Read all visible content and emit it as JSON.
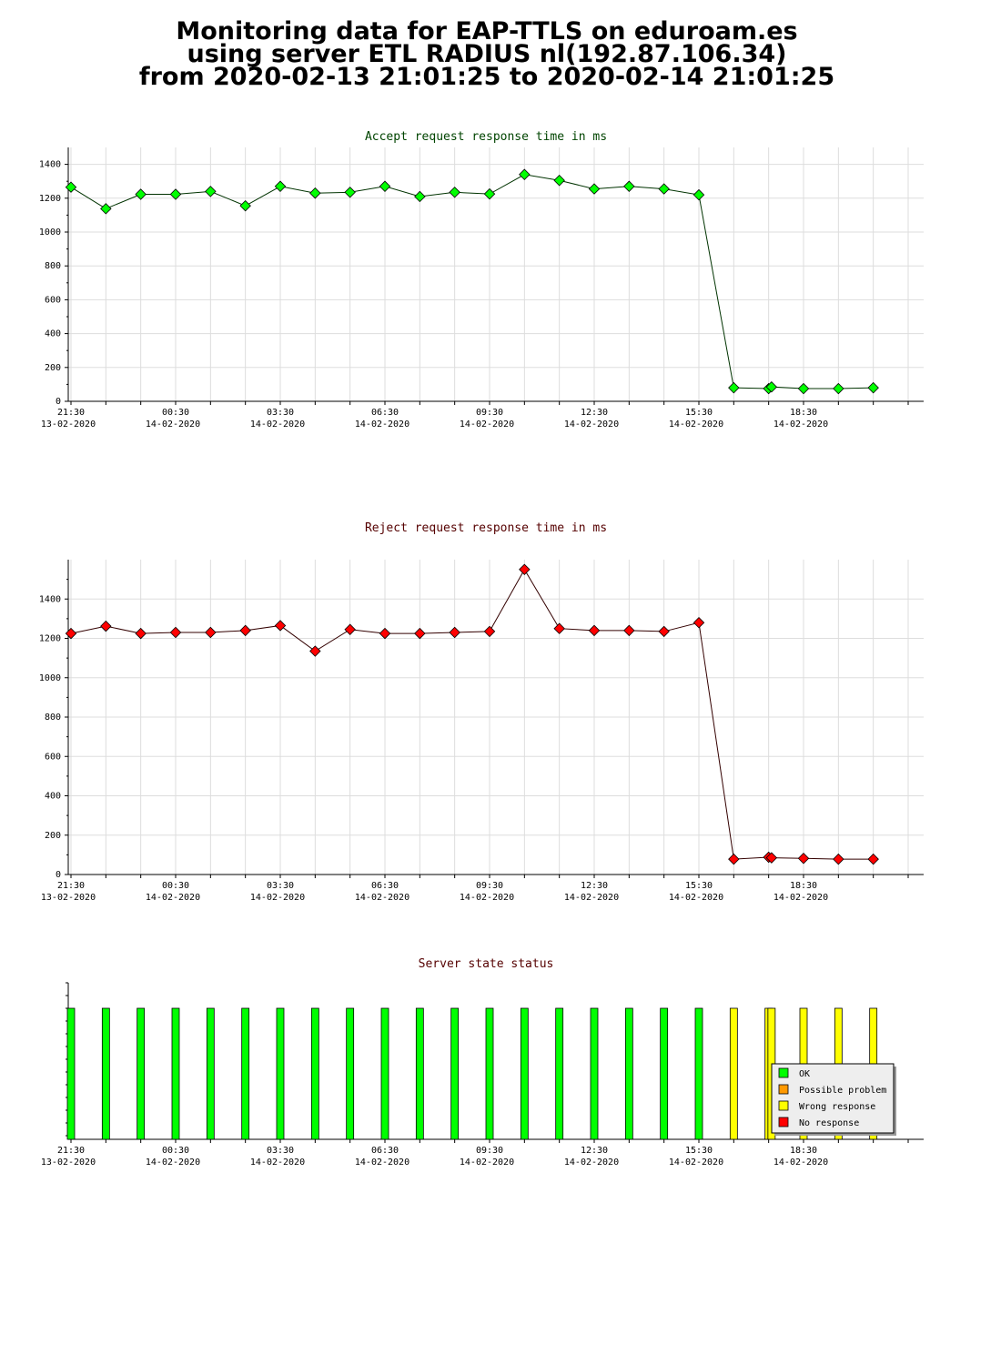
{
  "page_title": {
    "line1": "Monitoring data for EAP-TTLS on eduroam.es",
    "line2": "using server ETL RADIUS nl(192.87.106.34)",
    "line3": "from 2020-02-13 21:01:25 to 2020-02-14 21:01:25"
  },
  "x_ticks": [
    {
      "time": "21:30",
      "date": "13-02-2020"
    },
    {
      "time": "00:30",
      "date": "14-02-2020"
    },
    {
      "time": "03:30",
      "date": "14-02-2020"
    },
    {
      "time": "06:30",
      "date": "14-02-2020"
    },
    {
      "time": "09:30",
      "date": "14-02-2020"
    },
    {
      "time": "12:30",
      "date": "14-02-2020"
    },
    {
      "time": "15:30",
      "date": "14-02-2020"
    },
    {
      "time": "18:30",
      "date": "14-02-2020"
    }
  ],
  "chart_data": [
    {
      "type": "line",
      "title": "Accept request response time in ms",
      "xlabel": "",
      "ylabel": "",
      "ylim": [
        0,
        1500
      ],
      "yticks": [
        0,
        200,
        400,
        600,
        800,
        1000,
        1200,
        1400
      ],
      "xlim": [
        "2020-02-13 21:30",
        "2020-02-14 21:30"
      ],
      "grid": true,
      "color": "#00ff00",
      "line_color": "#003300",
      "title_color": "#004400",
      "x": [
        "2020-02-13 21:30",
        "2020-02-13 22:30",
        "2020-02-13 23:30",
        "2020-02-14 00:30",
        "2020-02-14 01:30",
        "2020-02-14 02:30",
        "2020-02-14 03:30",
        "2020-02-14 04:30",
        "2020-02-14 05:30",
        "2020-02-14 06:30",
        "2020-02-14 07:30",
        "2020-02-14 08:30",
        "2020-02-14 09:30",
        "2020-02-14 10:30",
        "2020-02-14 11:30",
        "2020-02-14 12:30",
        "2020-02-14 13:30",
        "2020-02-14 14:30",
        "2020-02-14 15:30",
        "2020-02-14 16:30",
        "2020-02-14 17:30",
        "2020-02-14 17:35",
        "2020-02-14 18:30",
        "2020-02-14 19:30",
        "2020-02-14 20:30"
      ],
      "values": [
        1265,
        1138,
        1223,
        1223,
        1240,
        1155,
        1270,
        1230,
        1235,
        1270,
        1210,
        1235,
        1225,
        1340,
        1305,
        1255,
        1270,
        1255,
        1220,
        80,
        75,
        85,
        75,
        75,
        80
      ]
    },
    {
      "type": "line",
      "title": "Reject request response time in ms",
      "xlabel": "",
      "ylabel": "",
      "ylim": [
        0,
        1600
      ],
      "yticks": [
        0,
        200,
        400,
        600,
        800,
        1000,
        1200,
        1400
      ],
      "xlim": [
        "2020-02-13 21:30",
        "2020-02-14 21:30"
      ],
      "grid": true,
      "color": "#ff0000",
      "line_color": "#330000",
      "title_color": "#550000",
      "x": [
        "2020-02-13 21:30",
        "2020-02-13 22:30",
        "2020-02-13 23:30",
        "2020-02-14 00:30",
        "2020-02-14 01:30",
        "2020-02-14 02:30",
        "2020-02-14 03:30",
        "2020-02-14 04:30",
        "2020-02-14 05:30",
        "2020-02-14 06:30",
        "2020-02-14 07:30",
        "2020-02-14 08:30",
        "2020-02-14 09:30",
        "2020-02-14 10:30",
        "2020-02-14 11:30",
        "2020-02-14 12:30",
        "2020-02-14 13:30",
        "2020-02-14 14:30",
        "2020-02-14 15:30",
        "2020-02-14 16:30",
        "2020-02-14 17:30",
        "2020-02-14 17:35",
        "2020-02-14 18:30",
        "2020-02-14 19:30",
        "2020-02-14 20:30"
      ],
      "values": [
        1225,
        1262,
        1225,
        1230,
        1230,
        1240,
        1265,
        1135,
        1245,
        1225,
        1225,
        1230,
        1235,
        1550,
        1250,
        1240,
        1240,
        1235,
        1280,
        78,
        88,
        85,
        82,
        78,
        78
      ]
    },
    {
      "type": "bar",
      "title": "Server state status",
      "xlim": [
        "2020-02-13 21:30",
        "2020-02-14 21:30"
      ],
      "title_color": "#550000",
      "legend": [
        {
          "label": "OK",
          "color": "#00ff00"
        },
        {
          "label": "Possible problem",
          "color": "#ff9900"
        },
        {
          "label": "Wrong response",
          "color": "#ffff00"
        },
        {
          "label": "No response",
          "color": "#ff0000"
        }
      ],
      "legend_position": "bottom-right",
      "x": [
        "2020-02-13 21:30",
        "2020-02-13 22:30",
        "2020-02-13 23:30",
        "2020-02-14 00:30",
        "2020-02-14 01:30",
        "2020-02-14 02:30",
        "2020-02-14 03:30",
        "2020-02-14 04:30",
        "2020-02-14 05:30",
        "2020-02-14 06:30",
        "2020-02-14 07:30",
        "2020-02-14 08:30",
        "2020-02-14 09:30",
        "2020-02-14 10:30",
        "2020-02-14 11:30",
        "2020-02-14 12:30",
        "2020-02-14 13:30",
        "2020-02-14 14:30",
        "2020-02-14 15:30",
        "2020-02-14 16:30",
        "2020-02-14 17:30",
        "2020-02-14 17:35",
        "2020-02-14 18:30",
        "2020-02-14 19:30",
        "2020-02-14 20:30"
      ],
      "states": [
        "OK",
        "OK",
        "OK",
        "OK",
        "OK",
        "OK",
        "OK",
        "OK",
        "OK",
        "OK",
        "OK",
        "OK",
        "OK",
        "OK",
        "OK",
        "OK",
        "OK",
        "OK",
        "OK",
        "Wrong response",
        "Wrong response",
        "Wrong response",
        "Wrong response",
        "Wrong response",
        "Wrong response"
      ]
    }
  ]
}
